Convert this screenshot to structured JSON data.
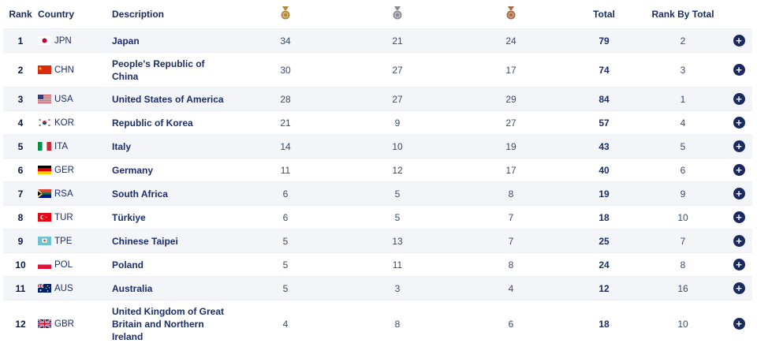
{
  "headers": {
    "rank": "Rank",
    "country": "Country",
    "description": "Description",
    "gold": "gold-medal-icon",
    "silver": "silver-medal-icon",
    "bronze": "bronze-medal-icon",
    "total": "Total",
    "rank_by_total": "Rank By Total"
  },
  "colors": {
    "gold": "#b08a3c",
    "silver": "#8d8d94",
    "bronze": "#a86b47",
    "expand_button": "#1a2a5e",
    "row_alt": "#f4f5f8"
  },
  "rows": [
    {
      "rank": "1",
      "code": "JPN",
      "flag": "jpn-flag-icon",
      "name": "Japan",
      "gold": "34",
      "silver": "21",
      "bronze": "24",
      "total": "79",
      "rank_by_total": "2"
    },
    {
      "rank": "2",
      "code": "CHN",
      "flag": "chn-flag-icon",
      "name": "People's Republic of China",
      "gold": "30",
      "silver": "27",
      "bronze": "17",
      "total": "74",
      "rank_by_total": "3"
    },
    {
      "rank": "3",
      "code": "USA",
      "flag": "usa-flag-icon",
      "name": "United States of America",
      "gold": "28",
      "silver": "27",
      "bronze": "29",
      "total": "84",
      "rank_by_total": "1"
    },
    {
      "rank": "4",
      "code": "KOR",
      "flag": "kor-flag-icon",
      "name": "Republic of Korea",
      "gold": "21",
      "silver": "9",
      "bronze": "27",
      "total": "57",
      "rank_by_total": "4"
    },
    {
      "rank": "5",
      "code": "ITA",
      "flag": "ita-flag-icon",
      "name": "Italy",
      "gold": "14",
      "silver": "10",
      "bronze": "19",
      "total": "43",
      "rank_by_total": "5"
    },
    {
      "rank": "6",
      "code": "GER",
      "flag": "ger-flag-icon",
      "name": "Germany",
      "gold": "11",
      "silver": "12",
      "bronze": "17",
      "total": "40",
      "rank_by_total": "6"
    },
    {
      "rank": "7",
      "code": "RSA",
      "flag": "rsa-flag-icon",
      "name": "South Africa",
      "gold": "6",
      "silver": "5",
      "bronze": "8",
      "total": "19",
      "rank_by_total": "9"
    },
    {
      "rank": "8",
      "code": "TUR",
      "flag": "tur-flag-icon",
      "name": "Türkiye",
      "gold": "6",
      "silver": "5",
      "bronze": "7",
      "total": "18",
      "rank_by_total": "10"
    },
    {
      "rank": "9",
      "code": "TPE",
      "flag": "tpe-flag-icon",
      "name": "Chinese Taipei",
      "gold": "5",
      "silver": "13",
      "bronze": "7",
      "total": "25",
      "rank_by_total": "7"
    },
    {
      "rank": "10",
      "code": "POL",
      "flag": "pol-flag-icon",
      "name": "Poland",
      "gold": "5",
      "silver": "11",
      "bronze": "8",
      "total": "24",
      "rank_by_total": "8"
    },
    {
      "rank": "11",
      "code": "AUS",
      "flag": "aus-flag-icon",
      "name": "Australia",
      "gold": "5",
      "silver": "3",
      "bronze": "4",
      "total": "12",
      "rank_by_total": "16"
    },
    {
      "rank": "12",
      "code": "GBR",
      "flag": "gbr-flag-icon",
      "name": "United Kingdom of Great Britain and Northern Ireland",
      "gold": "4",
      "silver": "8",
      "bronze": "6",
      "total": "18",
      "rank_by_total": "10"
    }
  ]
}
